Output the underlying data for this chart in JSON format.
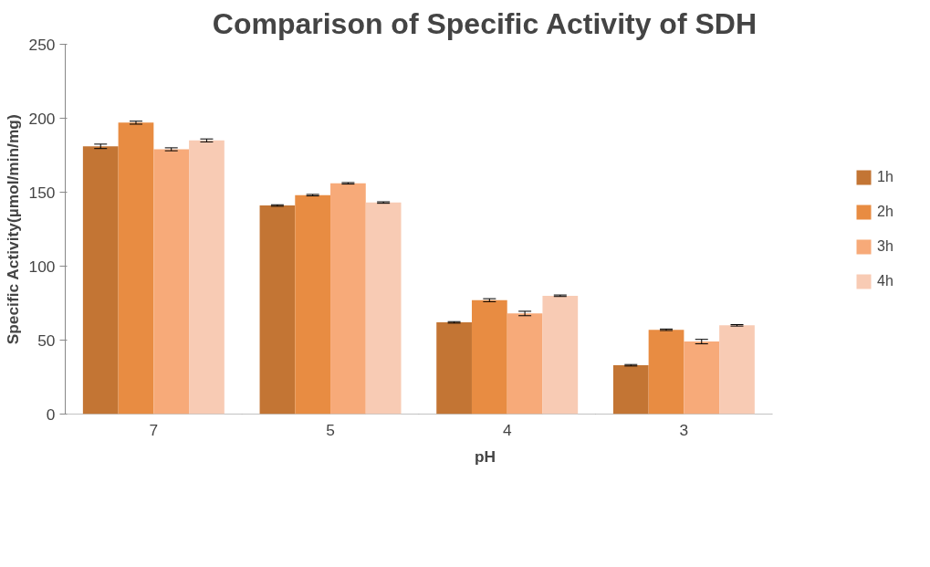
{
  "chart_data": {
    "type": "bar",
    "title": "Comparison of Specific Activity of SDH",
    "xlabel": "pH",
    "ylabel": "Specific Activity(µmol/min/mg)",
    "categories": [
      "7",
      "5",
      "4",
      "3"
    ],
    "series": [
      {
        "name": "1h",
        "color": "#c37534",
        "values": [
          181,
          141,
          62,
          33
        ],
        "errors": [
          1.5,
          0.5,
          0.5,
          0.5
        ]
      },
      {
        "name": "2h",
        "color": "#e88c42",
        "values": [
          197,
          148,
          77,
          57
        ],
        "errors": [
          1,
          0.5,
          1,
          0.5
        ]
      },
      {
        "name": "3h",
        "color": "#f7aa79",
        "values": [
          179,
          156,
          68,
          49
        ],
        "errors": [
          1,
          0.5,
          1.5,
          1.5
        ]
      },
      {
        "name": "4h",
        "color": "#f8cbb4",
        "values": [
          185,
          143,
          80,
          60
        ],
        "errors": [
          1,
          0.5,
          0.5,
          0.5
        ]
      }
    ],
    "ylim": [
      0,
      250
    ],
    "yticks": [
      0,
      50,
      100,
      150,
      200,
      250
    ],
    "grid": false,
    "legend": "right"
  }
}
